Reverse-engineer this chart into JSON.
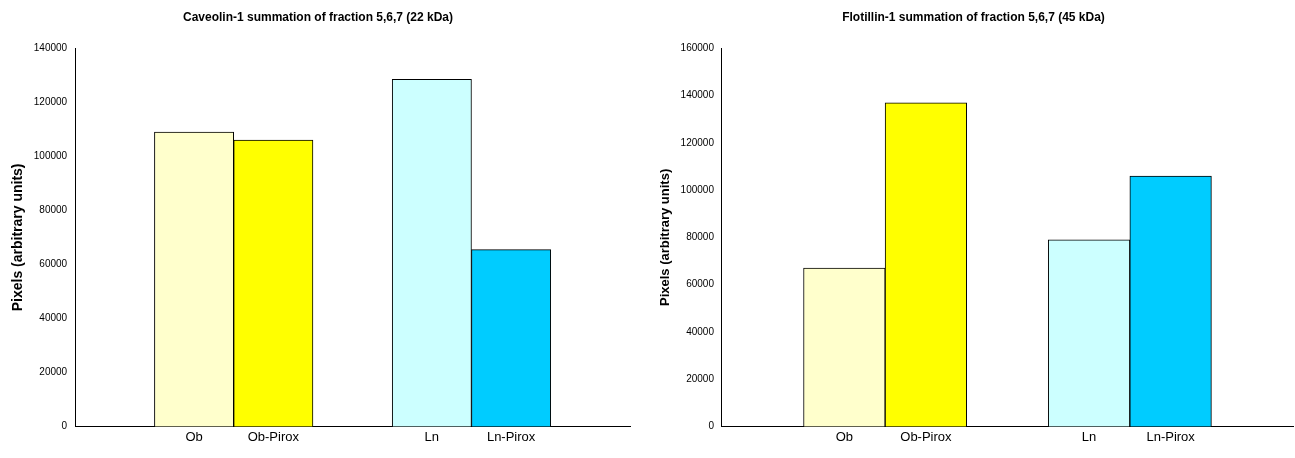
{
  "chart_data": [
    {
      "type": "bar",
      "title": "Caveolin-1 summation of fraction 5,6,7 (22 kDa)",
      "ylabel": "Pixels (arbitrary units)",
      "categories": [
        null,
        "Ob",
        "Ob-Pirox",
        null,
        "Ln",
        "Ln-Pirox",
        null
      ],
      "values": [
        null,
        109000,
        106000,
        null,
        128500,
        65500,
        null
      ],
      "colors": [
        "#ffffcc",
        "#ffffcc",
        "#ffff00",
        "#ccffff",
        "#ccffff",
        "#00ccff",
        "#00ccff"
      ],
      "ylim": [
        0,
        140000
      ],
      "yticks": [
        0,
        20000,
        40000,
        60000,
        80000,
        100000,
        120000,
        140000
      ],
      "grid": false,
      "legend": false
    },
    {
      "type": "bar",
      "title": "Flotillin-1 summation of fraction 5,6,7 (45 kDa)",
      "ylabel": "Pixels (arbitrary units)",
      "categories": [
        null,
        "Ob",
        "Ob-Pirox",
        null,
        "Ln",
        "Ln-Pirox",
        null
      ],
      "values": [
        null,
        67000,
        137000,
        null,
        79000,
        106000,
        null
      ],
      "colors": [
        "#ffffcc",
        "#ffffcc",
        "#ffff00",
        "#ccffff",
        "#ccffff",
        "#00ccff",
        "#00ccff"
      ],
      "ylim": [
        0,
        160000
      ],
      "yticks": [
        0,
        20000,
        40000,
        60000,
        80000,
        100000,
        120000,
        140000,
        160000
      ],
      "grid": false,
      "legend": false
    }
  ]
}
